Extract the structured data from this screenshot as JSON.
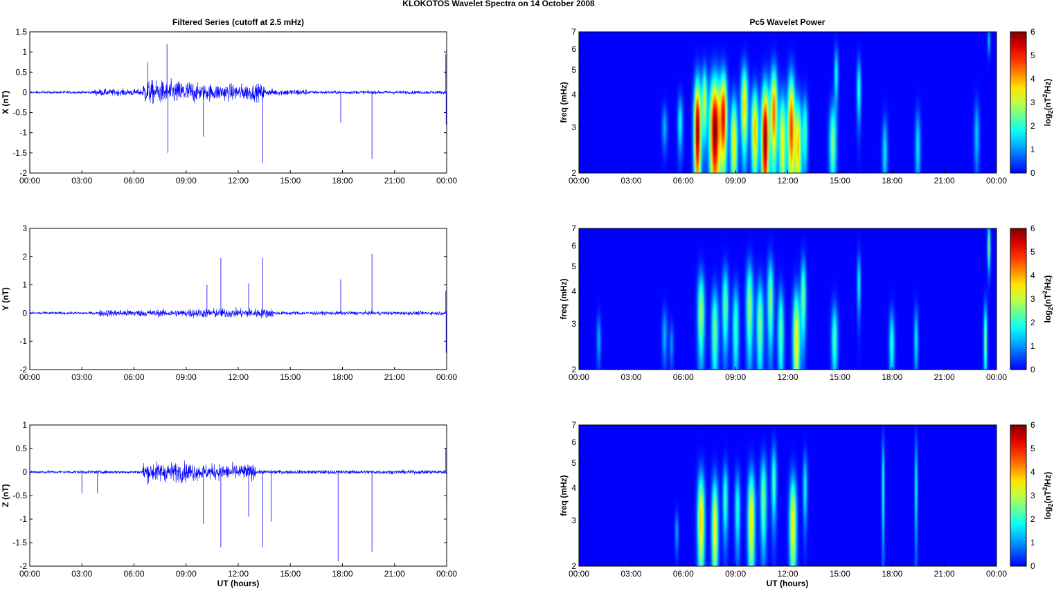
{
  "figure": {
    "title": "KLOKOTOS Wavelet Spectra on 14 October   2008"
  },
  "colors": {
    "trace": "#0000ff",
    "axis": "#000000",
    "background": "#ffffff"
  },
  "chart_data": [
    {
      "type": "line",
      "title": "Filtered Series (cutoff at 2.5 mHz)",
      "ylabel": "X (nT)",
      "xlabel": "",
      "ylim": [
        -2,
        1.5
      ],
      "yticks": [
        "1.5",
        "1",
        "0.5",
        "0",
        "-0.5",
        "-1",
        "-1.5",
        "-2"
      ],
      "xticks": [
        "00:00",
        "03:00",
        "06:00",
        "09:00",
        "12:00",
        "15:00",
        "18:00",
        "21:00",
        "00:00"
      ],
      "series": [
        {
          "values_description": "",
          "color": "#0000ff"
        }
      ],
      "activity": [
        {
          "start": 0,
          "end": 3.7,
          "amp": 0.04
        },
        {
          "start": 3.7,
          "end": 6.5,
          "amp": 0.1
        },
        {
          "start": 6.5,
          "end": 9.5,
          "amp": 0.35
        },
        {
          "start": 9.5,
          "end": 13.5,
          "amp": 0.25
        },
        {
          "start": 13.5,
          "end": 16,
          "amp": 0.1
        },
        {
          "start": 16,
          "end": 24,
          "amp": 0.05
        }
      ],
      "spikes": [
        [
          6.8,
          0.75
        ],
        [
          7.9,
          1.2
        ],
        [
          7.95,
          -1.5
        ],
        [
          10.0,
          -1.1
        ],
        [
          13.4,
          -1.75
        ],
        [
          17.9,
          -0.75
        ],
        [
          19.7,
          -1.65
        ],
        [
          23.95,
          0.95
        ],
        [
          23.97,
          -0.8
        ]
      ]
    },
    {
      "type": "line",
      "title": "",
      "ylabel": "Y (nT)",
      "xlabel": "",
      "ylim": [
        -2,
        3
      ],
      "yticks": [
        "3",
        "2",
        "1",
        "0",
        "-1",
        "-2"
      ],
      "xticks": [
        "00:00",
        "03:00",
        "06:00",
        "09:00",
        "12:00",
        "15:00",
        "18:00",
        "21:00",
        "00:00"
      ],
      "activity": [
        {
          "start": 0,
          "end": 4,
          "amp": 0.06
        },
        {
          "start": 4,
          "end": 9,
          "amp": 0.15
        },
        {
          "start": 9,
          "end": 14,
          "amp": 0.2
        },
        {
          "start": 14,
          "end": 24,
          "amp": 0.08
        }
      ],
      "spikes": [
        [
          10.2,
          1.0
        ],
        [
          11.0,
          1.95
        ],
        [
          12.6,
          1.05
        ],
        [
          13.4,
          1.95
        ],
        [
          17.9,
          1.2
        ],
        [
          19.7,
          2.1
        ],
        [
          23.95,
          0.8
        ],
        [
          23.97,
          -1.4
        ]
      ]
    },
    {
      "type": "line",
      "title": "",
      "ylabel": "Z (nT)",
      "xlabel": "UT (hours)",
      "ylim": [
        -2,
        1
      ],
      "yticks": [
        "1",
        "0.5",
        "0",
        "-0.5",
        "-1",
        "-1.5",
        "-2"
      ],
      "xticks": [
        "00:00",
        "03:00",
        "06:00",
        "09:00",
        "12:00",
        "15:00",
        "18:00",
        "21:00",
        "00:00"
      ],
      "activity": [
        {
          "start": 0,
          "end": 6.5,
          "amp": 0.04
        },
        {
          "start": 6.5,
          "end": 9.5,
          "amp": 0.25
        },
        {
          "start": 9.5,
          "end": 13,
          "amp": 0.2
        },
        {
          "start": 13,
          "end": 24,
          "amp": 0.05
        }
      ],
      "spikes": [
        [
          3.0,
          -0.45
        ],
        [
          3.9,
          -0.45
        ],
        [
          10.0,
          -1.1
        ],
        [
          11.0,
          -1.6
        ],
        [
          12.6,
          -0.95
        ],
        [
          13.4,
          -1.6
        ],
        [
          13.9,
          -1.05
        ],
        [
          17.75,
          -1.9
        ],
        [
          19.7,
          -1.7
        ],
        [
          23.95,
          0.5
        ]
      ]
    },
    {
      "type": "heatmap",
      "title": "Pc5 Wavelet Power",
      "ylabel": "freq (mHz)",
      "xlabel": "",
      "ylim": [
        2,
        7
      ],
      "yscale": "log",
      "yticks": [
        "7",
        "6",
        "5",
        "4",
        "3",
        "2"
      ],
      "xticks": [
        "00:00",
        "03:00",
        "06:00",
        "09:00",
        "12:00",
        "15:00",
        "18:00",
        "21:00",
        "00:00"
      ],
      "colorbar": {
        "label": "log2(nT^2/Hz)",
        "range": [
          0,
          6
        ],
        "ticks": [
          "6",
          "5",
          "4",
          "3",
          "2",
          "1",
          "0"
        ],
        "colormap": "jet"
      },
      "blobs": [
        {
          "t": 4.9,
          "f": 3.0,
          "p": 1.2,
          "w": 0.15,
          "h": 0.6
        },
        {
          "t": 5.8,
          "f": 3.1,
          "p": 1.8,
          "w": 0.15,
          "h": 0.8
        },
        {
          "t": 6.8,
          "f": 2.9,
          "p": 6.0,
          "w": 0.2,
          "h": 1.5
        },
        {
          "t": 7.2,
          "f": 3.8,
          "p": 3.0,
          "w": 0.15,
          "h": 1.2
        },
        {
          "t": 7.8,
          "f": 2.9,
          "p": 6.0,
          "w": 0.3,
          "h": 1.6
        },
        {
          "t": 8.3,
          "f": 3.3,
          "p": 5.0,
          "w": 0.2,
          "h": 1.4
        },
        {
          "t": 8.9,
          "f": 2.6,
          "p": 3.5,
          "w": 0.2,
          "h": 1.2
        },
        {
          "t": 9.5,
          "f": 3.6,
          "p": 3.8,
          "w": 0.2,
          "h": 1.4
        },
        {
          "t": 10.1,
          "f": 2.9,
          "p": 4.0,
          "w": 0.2,
          "h": 1.2
        },
        {
          "t": 10.7,
          "f": 2.7,
          "p": 6.0,
          "w": 0.22,
          "h": 1.5
        },
        {
          "t": 11.2,
          "f": 3.4,
          "p": 4.5,
          "w": 0.2,
          "h": 1.5
        },
        {
          "t": 11.7,
          "f": 2.6,
          "p": 3.5,
          "w": 0.2,
          "h": 1.3
        },
        {
          "t": 12.2,
          "f": 3.0,
          "p": 4.8,
          "w": 0.2,
          "h": 1.6
        },
        {
          "t": 12.6,
          "f": 2.5,
          "p": 3.8,
          "w": 0.2,
          "h": 1.2
        },
        {
          "t": 13.0,
          "f": 2.9,
          "p": 2.2,
          "w": 0.15,
          "h": 1.0
        },
        {
          "t": 14.6,
          "f": 2.6,
          "p": 2.6,
          "w": 0.2,
          "h": 1.0
        },
        {
          "t": 14.8,
          "f": 4.8,
          "p": 1.8,
          "w": 0.12,
          "h": 1.2
        },
        {
          "t": 16.1,
          "f": 4.2,
          "p": 2.0,
          "w": 0.12,
          "h": 1.2
        },
        {
          "t": 17.6,
          "f": 2.4,
          "p": 1.6,
          "w": 0.15,
          "h": 0.8
        },
        {
          "t": 19.5,
          "f": 2.5,
          "p": 1.6,
          "w": 0.15,
          "h": 0.9
        },
        {
          "t": 22.9,
          "f": 2.8,
          "p": 1.4,
          "w": 0.15,
          "h": 0.9
        },
        {
          "t": 23.6,
          "f": 6.5,
          "p": 1.4,
          "w": 0.08,
          "h": 0.8
        }
      ]
    },
    {
      "type": "heatmap",
      "title": "",
      "ylabel": "freq (mHz)",
      "xlabel": "",
      "ylim": [
        2,
        7
      ],
      "yscale": "log",
      "yticks": [
        "7",
        "6",
        "5",
        "4",
        "3",
        "2"
      ],
      "xticks": [
        "00:00",
        "03:00",
        "06:00",
        "09:00",
        "12:00",
        "15:00",
        "18:00",
        "21:00",
        "00:00"
      ],
      "colorbar": {
        "label": "log2(nT^2/Hz)",
        "range": [
          0,
          6
        ],
        "ticks": [
          "6",
          "5",
          "4",
          "3",
          "2",
          "1",
          "0"
        ],
        "colormap": "jet"
      },
      "blobs": [
        {
          "t": 1.1,
          "f": 2.6,
          "p": 1.2,
          "w": 0.12,
          "h": 0.6
        },
        {
          "t": 4.9,
          "f": 2.7,
          "p": 1.2,
          "w": 0.15,
          "h": 0.7
        },
        {
          "t": 5.3,
          "f": 2.5,
          "p": 1.0,
          "w": 0.12,
          "h": 0.5
        },
        {
          "t": 7.0,
          "f": 3.3,
          "p": 2.8,
          "w": 0.2,
          "h": 1.3
        },
        {
          "t": 7.8,
          "f": 2.8,
          "p": 2.5,
          "w": 0.2,
          "h": 1.2
        },
        {
          "t": 8.4,
          "f": 3.5,
          "p": 2.5,
          "w": 0.18,
          "h": 1.3
        },
        {
          "t": 9.0,
          "f": 2.9,
          "p": 2.2,
          "w": 0.18,
          "h": 1.2
        },
        {
          "t": 9.8,
          "f": 3.5,
          "p": 2.8,
          "w": 0.2,
          "h": 1.5
        },
        {
          "t": 10.4,
          "f": 3.0,
          "p": 2.6,
          "w": 0.2,
          "h": 1.3
        },
        {
          "t": 11.0,
          "f": 3.7,
          "p": 2.6,
          "w": 0.18,
          "h": 1.5
        },
        {
          "t": 11.6,
          "f": 2.8,
          "p": 2.4,
          "w": 0.18,
          "h": 1.2
        },
        {
          "t": 12.5,
          "f": 2.6,
          "p": 3.6,
          "w": 0.2,
          "h": 1.3
        },
        {
          "t": 12.9,
          "f": 3.8,
          "p": 2.6,
          "w": 0.15,
          "h": 1.4
        },
        {
          "t": 14.7,
          "f": 2.6,
          "p": 2.2,
          "w": 0.18,
          "h": 0.9
        },
        {
          "t": 16.1,
          "f": 4.3,
          "p": 1.8,
          "w": 0.1,
          "h": 1.2
        },
        {
          "t": 18.0,
          "f": 2.5,
          "p": 2.0,
          "w": 0.15,
          "h": 0.8
        },
        {
          "t": 19.4,
          "f": 2.6,
          "p": 1.6,
          "w": 0.12,
          "h": 0.8
        },
        {
          "t": 23.4,
          "f": 2.6,
          "p": 2.6,
          "w": 0.1,
          "h": 0.9
        },
        {
          "t": 23.6,
          "f": 6.0,
          "p": 2.8,
          "w": 0.08,
          "h": 1.2
        }
      ]
    },
    {
      "type": "heatmap",
      "title": "",
      "ylabel": "freq (mHz)",
      "xlabel": "UT (hours)",
      "ylim": [
        2,
        7
      ],
      "yscale": "log",
      "yticks": [
        "7",
        "6",
        "5",
        "4",
        "3",
        "2"
      ],
      "xticks": [
        "00:00",
        "03:00",
        "06:00",
        "09:00",
        "12:00",
        "15:00",
        "18:00",
        "21:00",
        "00:00"
      ],
      "colorbar": {
        "label": "log2(nT^2/Hz)",
        "range": [
          0,
          6
        ],
        "ticks": [
          "6",
          "5",
          "4",
          "3",
          "2",
          "1",
          "0"
        ],
        "colormap": "jet"
      },
      "blobs": [
        {
          "t": 5.6,
          "f": 2.7,
          "p": 1.2,
          "w": 0.1,
          "h": 0.5
        },
        {
          "t": 7.0,
          "f": 3.0,
          "p": 3.8,
          "w": 0.2,
          "h": 1.4
        },
        {
          "t": 7.8,
          "f": 2.8,
          "p": 3.6,
          "w": 0.18,
          "h": 1.4
        },
        {
          "t": 8.4,
          "f": 3.6,
          "p": 2.2,
          "w": 0.15,
          "h": 1.2
        },
        {
          "t": 9.1,
          "f": 3.3,
          "p": 2.0,
          "w": 0.15,
          "h": 1.2
        },
        {
          "t": 9.9,
          "f": 3.0,
          "p": 3.6,
          "w": 0.2,
          "h": 1.5
        },
        {
          "t": 10.6,
          "f": 3.6,
          "p": 2.6,
          "w": 0.18,
          "h": 1.5
        },
        {
          "t": 11.2,
          "f": 4.2,
          "p": 2.2,
          "w": 0.15,
          "h": 1.5
        },
        {
          "t": 12.3,
          "f": 2.9,
          "p": 3.6,
          "w": 0.2,
          "h": 1.4
        },
        {
          "t": 13.0,
          "f": 4.0,
          "p": 1.8,
          "w": 0.12,
          "h": 1.3
        },
        {
          "t": 17.5,
          "f": 4.0,
          "p": 2.0,
          "w": 0.08,
          "h": 2.0
        },
        {
          "t": 19.4,
          "f": 4.0,
          "p": 1.8,
          "w": 0.08,
          "h": 2.0
        }
      ]
    }
  ]
}
